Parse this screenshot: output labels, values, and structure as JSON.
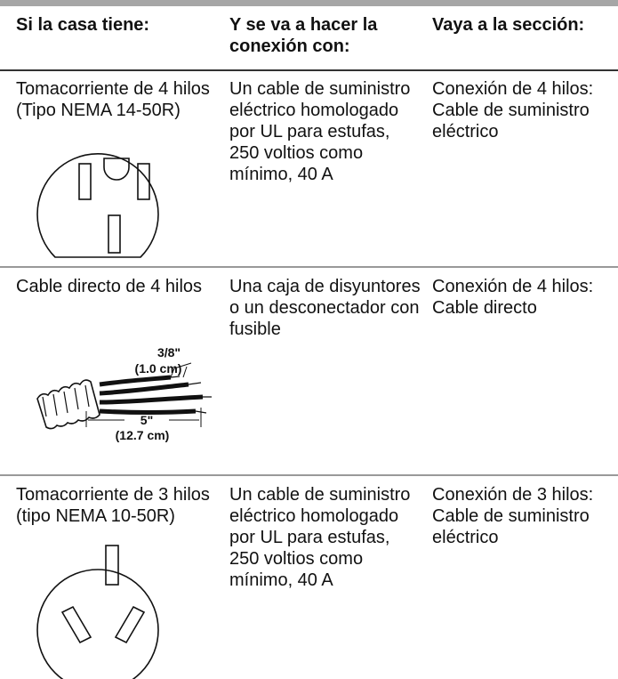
{
  "table": {
    "header": [
      "Si la casa tiene:",
      "Y se va a hacer la conexión con:",
      "Vaya a la sección:"
    ],
    "rows": [
      [
        "Tomacorriente de 4 hilos (Tipo NEMA 14-50R)",
        "Un cable de suministro eléctrico homologado por UL para estufas, 250 voltios como mínimo, 40 A",
        "Conexión de 4 hilos: Cable de suministro eléctrico"
      ],
      [
        "Cable directo de 4 hilos",
        "Una caja de disyuntores o un desconectador con fusible",
        "Conexión de 4 hilos: Cable directo"
      ],
      [
        "Tomacorriente de 3 hilos (tipo NEMA 10-50R)",
        "Un cable de suministro eléctrico homologado por UL para estufas, 250 voltios como mínimo, 40 A",
        "Conexión de 3 hilos: Cable de suministro eléctrico"
      ]
    ]
  },
  "figures": {
    "cable_labels": [
      "3/8\"",
      "(1.0 cm)",
      "5\"",
      "(12.7 cm)"
    ]
  }
}
